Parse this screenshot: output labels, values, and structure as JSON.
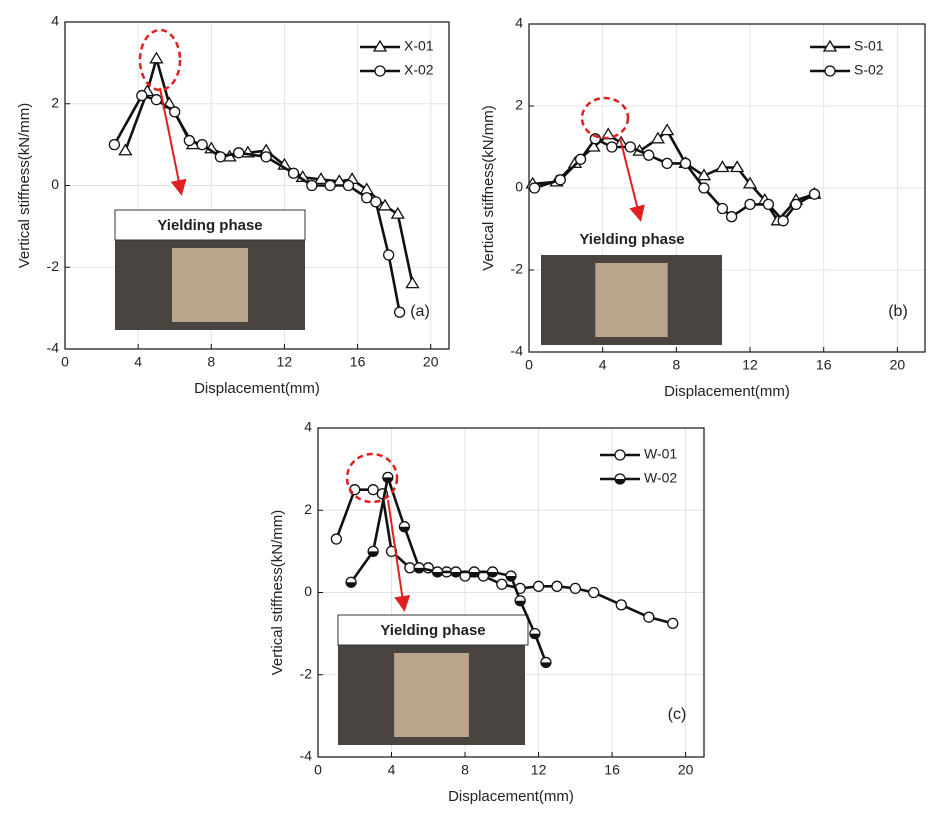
{
  "chart_data": [
    {
      "type": "line",
      "xlabel": "Displacement(mm)",
      "ylabel": "Vertical stiffness(kN/mm)",
      "xlim": [
        0,
        21
      ],
      "ylim": [
        -4,
        4
      ],
      "xticks": [
        0,
        4,
        8,
        12,
        16,
        20
      ],
      "yticks": [
        -4,
        -2,
        0,
        2,
        4
      ],
      "grid": true,
      "legend": "upper right",
      "annotations": [
        "Yielding phase",
        "(a)"
      ],
      "series": [
        {
          "name": "X-01",
          "color": "#111111",
          "marker": "triangle",
          "x": [
            3.3,
            4.5,
            5.0,
            5.7,
            7.0,
            8.0,
            9.0,
            10.0,
            11.0,
            12.0,
            13.0,
            14.0,
            15.0,
            15.7,
            16.5,
            17.5,
            18.2,
            19.0
          ],
          "values": [
            0.85,
            2.3,
            3.1,
            2.0,
            1.0,
            0.9,
            0.7,
            0.8,
            0.85,
            0.5,
            0.2,
            0.15,
            0.1,
            0.15,
            -0.1,
            -0.5,
            -0.7,
            -2.4
          ]
        },
        {
          "name": "X-02",
          "color": "#111111",
          "marker": "circle",
          "x": [
            2.7,
            4.2,
            5.0,
            6.0,
            6.8,
            7.5,
            8.5,
            9.5,
            11.0,
            12.5,
            13.5,
            14.5,
            15.5,
            16.5,
            17.0,
            17.7,
            18.3
          ],
          "values": [
            1.0,
            2.2,
            2.1,
            1.8,
            1.1,
            1.0,
            0.7,
            0.8,
            0.7,
            0.3,
            0.0,
            0.0,
            0.0,
            -0.3,
            -0.4,
            -1.7,
            -3.1
          ]
        }
      ]
    },
    {
      "type": "line",
      "xlabel": "Displacement(mm)",
      "ylabel": "Vertical stiffness(kN/mm)",
      "xlim": [
        0,
        21.5
      ],
      "ylim": [
        -4,
        4
      ],
      "xticks": [
        0,
        4,
        8,
        12,
        16,
        20
      ],
      "yticks": [
        -4,
        -2,
        0,
        2,
        4
      ],
      "grid": true,
      "legend": "upper right",
      "annotations": [
        "Yielding phase",
        "(b)"
      ],
      "series": [
        {
          "name": "S-01",
          "color": "#111111",
          "marker": "triangle",
          "x": [
            0.2,
            1.5,
            2.5,
            3.5,
            4.3,
            5.0,
            6.0,
            7.0,
            7.5,
            8.5,
            9.5,
            10.5,
            11.3,
            12.0,
            12.8,
            13.5,
            14.5,
            15.5
          ],
          "values": [
            0.1,
            0.15,
            0.6,
            1.0,
            1.3,
            1.1,
            0.9,
            1.2,
            1.4,
            0.6,
            0.3,
            0.5,
            0.5,
            0.1,
            -0.3,
            -0.8,
            -0.3,
            -0.15
          ]
        },
        {
          "name": "S-02",
          "color": "#111111",
          "marker": "circle",
          "x": [
            0.3,
            1.7,
            2.8,
            3.6,
            4.5,
            5.5,
            6.5,
            7.5,
            8.5,
            9.5,
            10.5,
            11.0,
            12.0,
            13.0,
            13.8,
            14.5,
            15.5
          ],
          "values": [
            0.0,
            0.2,
            0.7,
            1.2,
            1.0,
            1.0,
            0.8,
            0.6,
            0.6,
            0.0,
            -0.5,
            -0.7,
            -0.4,
            -0.4,
            -0.8,
            -0.4,
            -0.15
          ]
        }
      ]
    },
    {
      "type": "line",
      "xlabel": "Displacement(mm)",
      "ylabel": "Vertical stiffness(kN/mm)",
      "xlim": [
        0,
        21
      ],
      "ylim": [
        -4,
        4
      ],
      "xticks": [
        0,
        4,
        8,
        12,
        16,
        20
      ],
      "yticks": [
        -4,
        -2,
        0,
        2,
        4
      ],
      "grid": true,
      "legend": "upper right",
      "annotations": [
        "Yielding phase",
        "(c)"
      ],
      "series": [
        {
          "name": "W-01",
          "color": "#111111",
          "marker": "circle",
          "x": [
            1.0,
            2.0,
            3.0,
            3.5,
            4.0,
            5.0,
            6.0,
            7.0,
            8.0,
            9.0,
            10.0,
            11.0,
            12.0,
            13.0,
            14.0,
            15.0,
            16.5,
            18.0,
            19.3
          ],
          "values": [
            1.3,
            2.5,
            2.5,
            2.4,
            1.0,
            0.6,
            0.6,
            0.5,
            0.4,
            0.4,
            0.2,
            0.1,
            0.15,
            0.15,
            0.1,
            0.0,
            -0.3,
            -0.6,
            -0.75
          ]
        },
        {
          "name": "W-02",
          "color": "#111111",
          "marker": "half",
          "x": [
            1.8,
            3.0,
            3.8,
            4.7,
            5.5,
            6.5,
            7.5,
            8.5,
            9.5,
            10.5,
            11.0,
            11.8,
            12.4
          ],
          "values": [
            0.25,
            1.0,
            2.8,
            1.6,
            0.6,
            0.5,
            0.5,
            0.5,
            0.5,
            0.4,
            -0.2,
            -1.0,
            -1.7
          ]
        }
      ]
    }
  ]
}
